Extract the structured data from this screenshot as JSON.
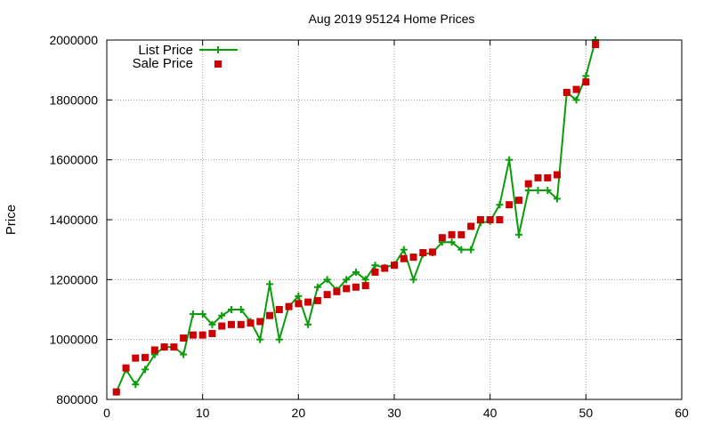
{
  "chart_data": {
    "type": "line",
    "title": "Aug 2019 95124 Home Prices",
    "xlabel": "",
    "ylabel": "Price",
    "xlim": [
      0,
      60
    ],
    "ylim": [
      800000,
      2000000
    ],
    "xticks": [
      0,
      10,
      20,
      30,
      40,
      50,
      60
    ],
    "yticks": [
      800000,
      1000000,
      1200000,
      1400000,
      1600000,
      1800000,
      2000000
    ],
    "grid": true,
    "legend_position": "top-left",
    "series": [
      {
        "name": "List Price",
        "style": "line-plus",
        "color": "#0a9d0a",
        "points": [
          [
            1,
            825000
          ],
          [
            2,
            900000
          ],
          [
            3,
            850000
          ],
          [
            4,
            900000
          ],
          [
            5,
            950000
          ],
          [
            6,
            975000
          ],
          [
            7,
            975000
          ],
          [
            8,
            950000
          ],
          [
            9,
            1085000
          ],
          [
            10,
            1085000
          ],
          [
            11,
            1050000
          ],
          [
            12,
            1080000
          ],
          [
            13,
            1100000
          ],
          [
            14,
            1100000
          ],
          [
            15,
            1060000
          ],
          [
            16,
            1000000
          ],
          [
            17,
            1185000
          ],
          [
            18,
            1000000
          ],
          [
            19,
            1110000
          ],
          [
            20,
            1145000
          ],
          [
            21,
            1050000
          ],
          [
            22,
            1175000
          ],
          [
            23,
            1200000
          ],
          [
            24,
            1165000
          ],
          [
            25,
            1200000
          ],
          [
            26,
            1225000
          ],
          [
            27,
            1200000
          ],
          [
            28,
            1248000
          ],
          [
            29,
            1240000
          ],
          [
            30,
            1250000
          ],
          [
            31,
            1300000
          ],
          [
            32,
            1200000
          ],
          [
            33,
            1285000
          ],
          [
            34,
            1290000
          ],
          [
            35,
            1325000
          ],
          [
            36,
            1325000
          ],
          [
            37,
            1300000
          ],
          [
            38,
            1300000
          ],
          [
            39,
            1390000
          ],
          [
            40,
            1395000
          ],
          [
            41,
            1450000
          ],
          [
            42,
            1600000
          ],
          [
            43,
            1350000
          ],
          [
            44,
            1498000
          ],
          [
            45,
            1498000
          ],
          [
            46,
            1498000
          ],
          [
            47,
            1470000
          ],
          [
            48,
            1825000
          ],
          [
            49,
            1800000
          ],
          [
            50,
            1880000
          ],
          [
            51,
            2000000
          ]
        ]
      },
      {
        "name": "Sale Price",
        "style": "square",
        "color": "#cc0000",
        "points": [
          [
            1,
            825000
          ],
          [
            2,
            905000
          ],
          [
            3,
            938000
          ],
          [
            4,
            940000
          ],
          [
            5,
            965000
          ],
          [
            6,
            975000
          ],
          [
            7,
            975000
          ],
          [
            8,
            1005000
          ],
          [
            9,
            1015000
          ],
          [
            10,
            1015000
          ],
          [
            11,
            1020000
          ],
          [
            12,
            1045000
          ],
          [
            13,
            1050000
          ],
          [
            14,
            1050000
          ],
          [
            15,
            1055000
          ],
          [
            16,
            1060000
          ],
          [
            17,
            1080000
          ],
          [
            18,
            1100000
          ],
          [
            19,
            1110000
          ],
          [
            20,
            1120000
          ],
          [
            21,
            1125000
          ],
          [
            22,
            1130000
          ],
          [
            23,
            1150000
          ],
          [
            24,
            1160000
          ],
          [
            25,
            1170000
          ],
          [
            26,
            1175000
          ],
          [
            27,
            1180000
          ],
          [
            28,
            1225000
          ],
          [
            29,
            1238000
          ],
          [
            30,
            1248000
          ],
          [
            31,
            1270000
          ],
          [
            32,
            1275000
          ],
          [
            33,
            1290000
          ],
          [
            34,
            1292000
          ],
          [
            35,
            1340000
          ],
          [
            36,
            1350000
          ],
          [
            37,
            1350000
          ],
          [
            38,
            1378000
          ],
          [
            39,
            1400000
          ],
          [
            40,
            1400000
          ],
          [
            41,
            1400000
          ],
          [
            42,
            1450000
          ],
          [
            43,
            1465000
          ],
          [
            44,
            1520000
          ],
          [
            45,
            1540000
          ],
          [
            46,
            1540000
          ],
          [
            47,
            1550000
          ],
          [
            48,
            1825000
          ],
          [
            49,
            1835000
          ],
          [
            50,
            1860000
          ],
          [
            51,
            1985000
          ]
        ]
      }
    ]
  }
}
